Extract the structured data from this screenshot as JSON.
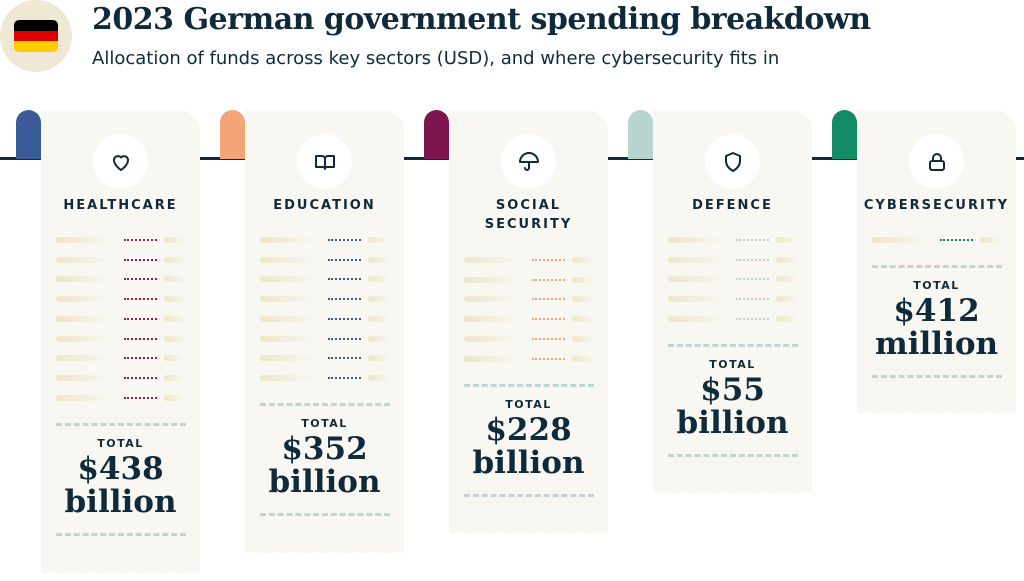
{
  "header": {
    "title": "2023 German government spending breakdown",
    "subtitle": "Allocation of funds across key sectors (USD), and where cybersecurity fits in",
    "flag_colors": [
      "#000000",
      "#dd0000",
      "#ffce00"
    ]
  },
  "total_label": "TOTAL",
  "sectors": [
    {
      "name": "HEALTHCARE",
      "icon": "heart-icon",
      "amount": "$438",
      "unit": "billion",
      "tab_color": "#3a5b98",
      "dot_color": "#8b2252",
      "line_items": 9
    },
    {
      "name": "EDUCATION",
      "icon": "book-icon",
      "amount": "$352",
      "unit": "billion",
      "tab_color": "#f4a578",
      "dot_color": "#3a5b98",
      "line_items": 8
    },
    {
      "name": "SOCIAL SECURITY",
      "icon": "umbrella-icon",
      "amount": "$228",
      "unit": "billion",
      "tab_color": "#7d1650",
      "dot_color": "#f4a578",
      "line_items": 6
    },
    {
      "name": "DEFENCE",
      "icon": "shield-icon",
      "amount": "$55",
      "unit": "billion",
      "tab_color": "#b8d4d1",
      "dot_color": "#b8d4d1",
      "line_items": 5
    },
    {
      "name": "CYBERSECURITY",
      "icon": "lock-icon",
      "amount": "$412",
      "unit": "million",
      "tab_color": "#138a66",
      "dot_color": "#138a66",
      "line_items": 1
    }
  ]
}
